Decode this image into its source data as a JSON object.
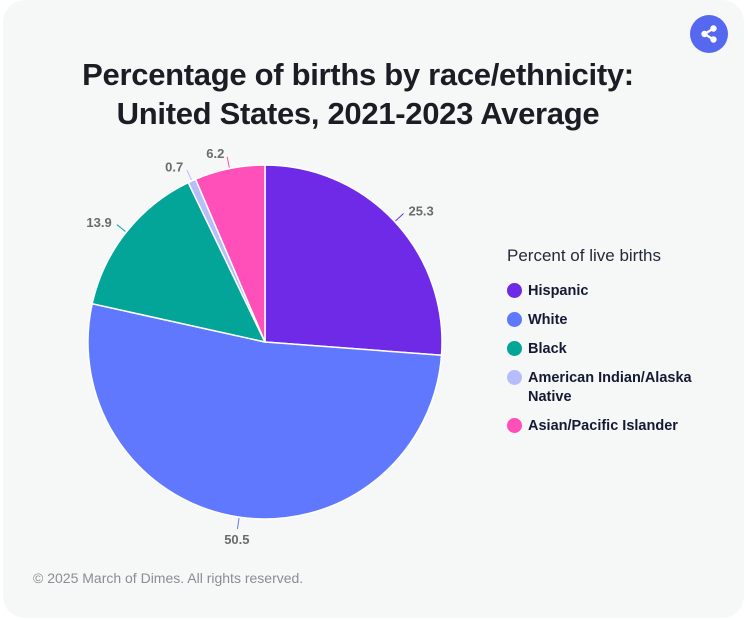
{
  "header": {
    "title_line1": "Percentage of births by race/ethnicity:",
    "title_line2": "United States, 2021-2023 Average",
    "share_icon": "share-icon"
  },
  "legend": {
    "title": "Percent of live births"
  },
  "footer": {
    "copyright": "© 2025 March of Dimes. All rights reserved."
  },
  "chart_data": {
    "type": "pie",
    "title": "Percentage of births by race/ethnicity: United States, 2021-2023 Average",
    "legend_title": "Percent of live births",
    "legend_position": "right",
    "unit": "percent",
    "start_angle": "12 o'clock",
    "direction": "clockwise",
    "slices": [
      {
        "name": "Hispanic",
        "value": 25.3,
        "label": "25.3",
        "color": "#6f2ae8"
      },
      {
        "name": "White",
        "value": 50.5,
        "label": "50.5",
        "color": "#6078fe"
      },
      {
        "name": "Black",
        "value": 13.9,
        "label": "13.9",
        "color": "#02a597"
      },
      {
        "name": "American Indian/Alaska Native",
        "value": 0.7,
        "label": "0.7",
        "color": "#b5befb"
      },
      {
        "name": "Asian/Pacific Islander",
        "value": 6.2,
        "label": "6.2",
        "color": "#ff4fb9"
      }
    ]
  }
}
